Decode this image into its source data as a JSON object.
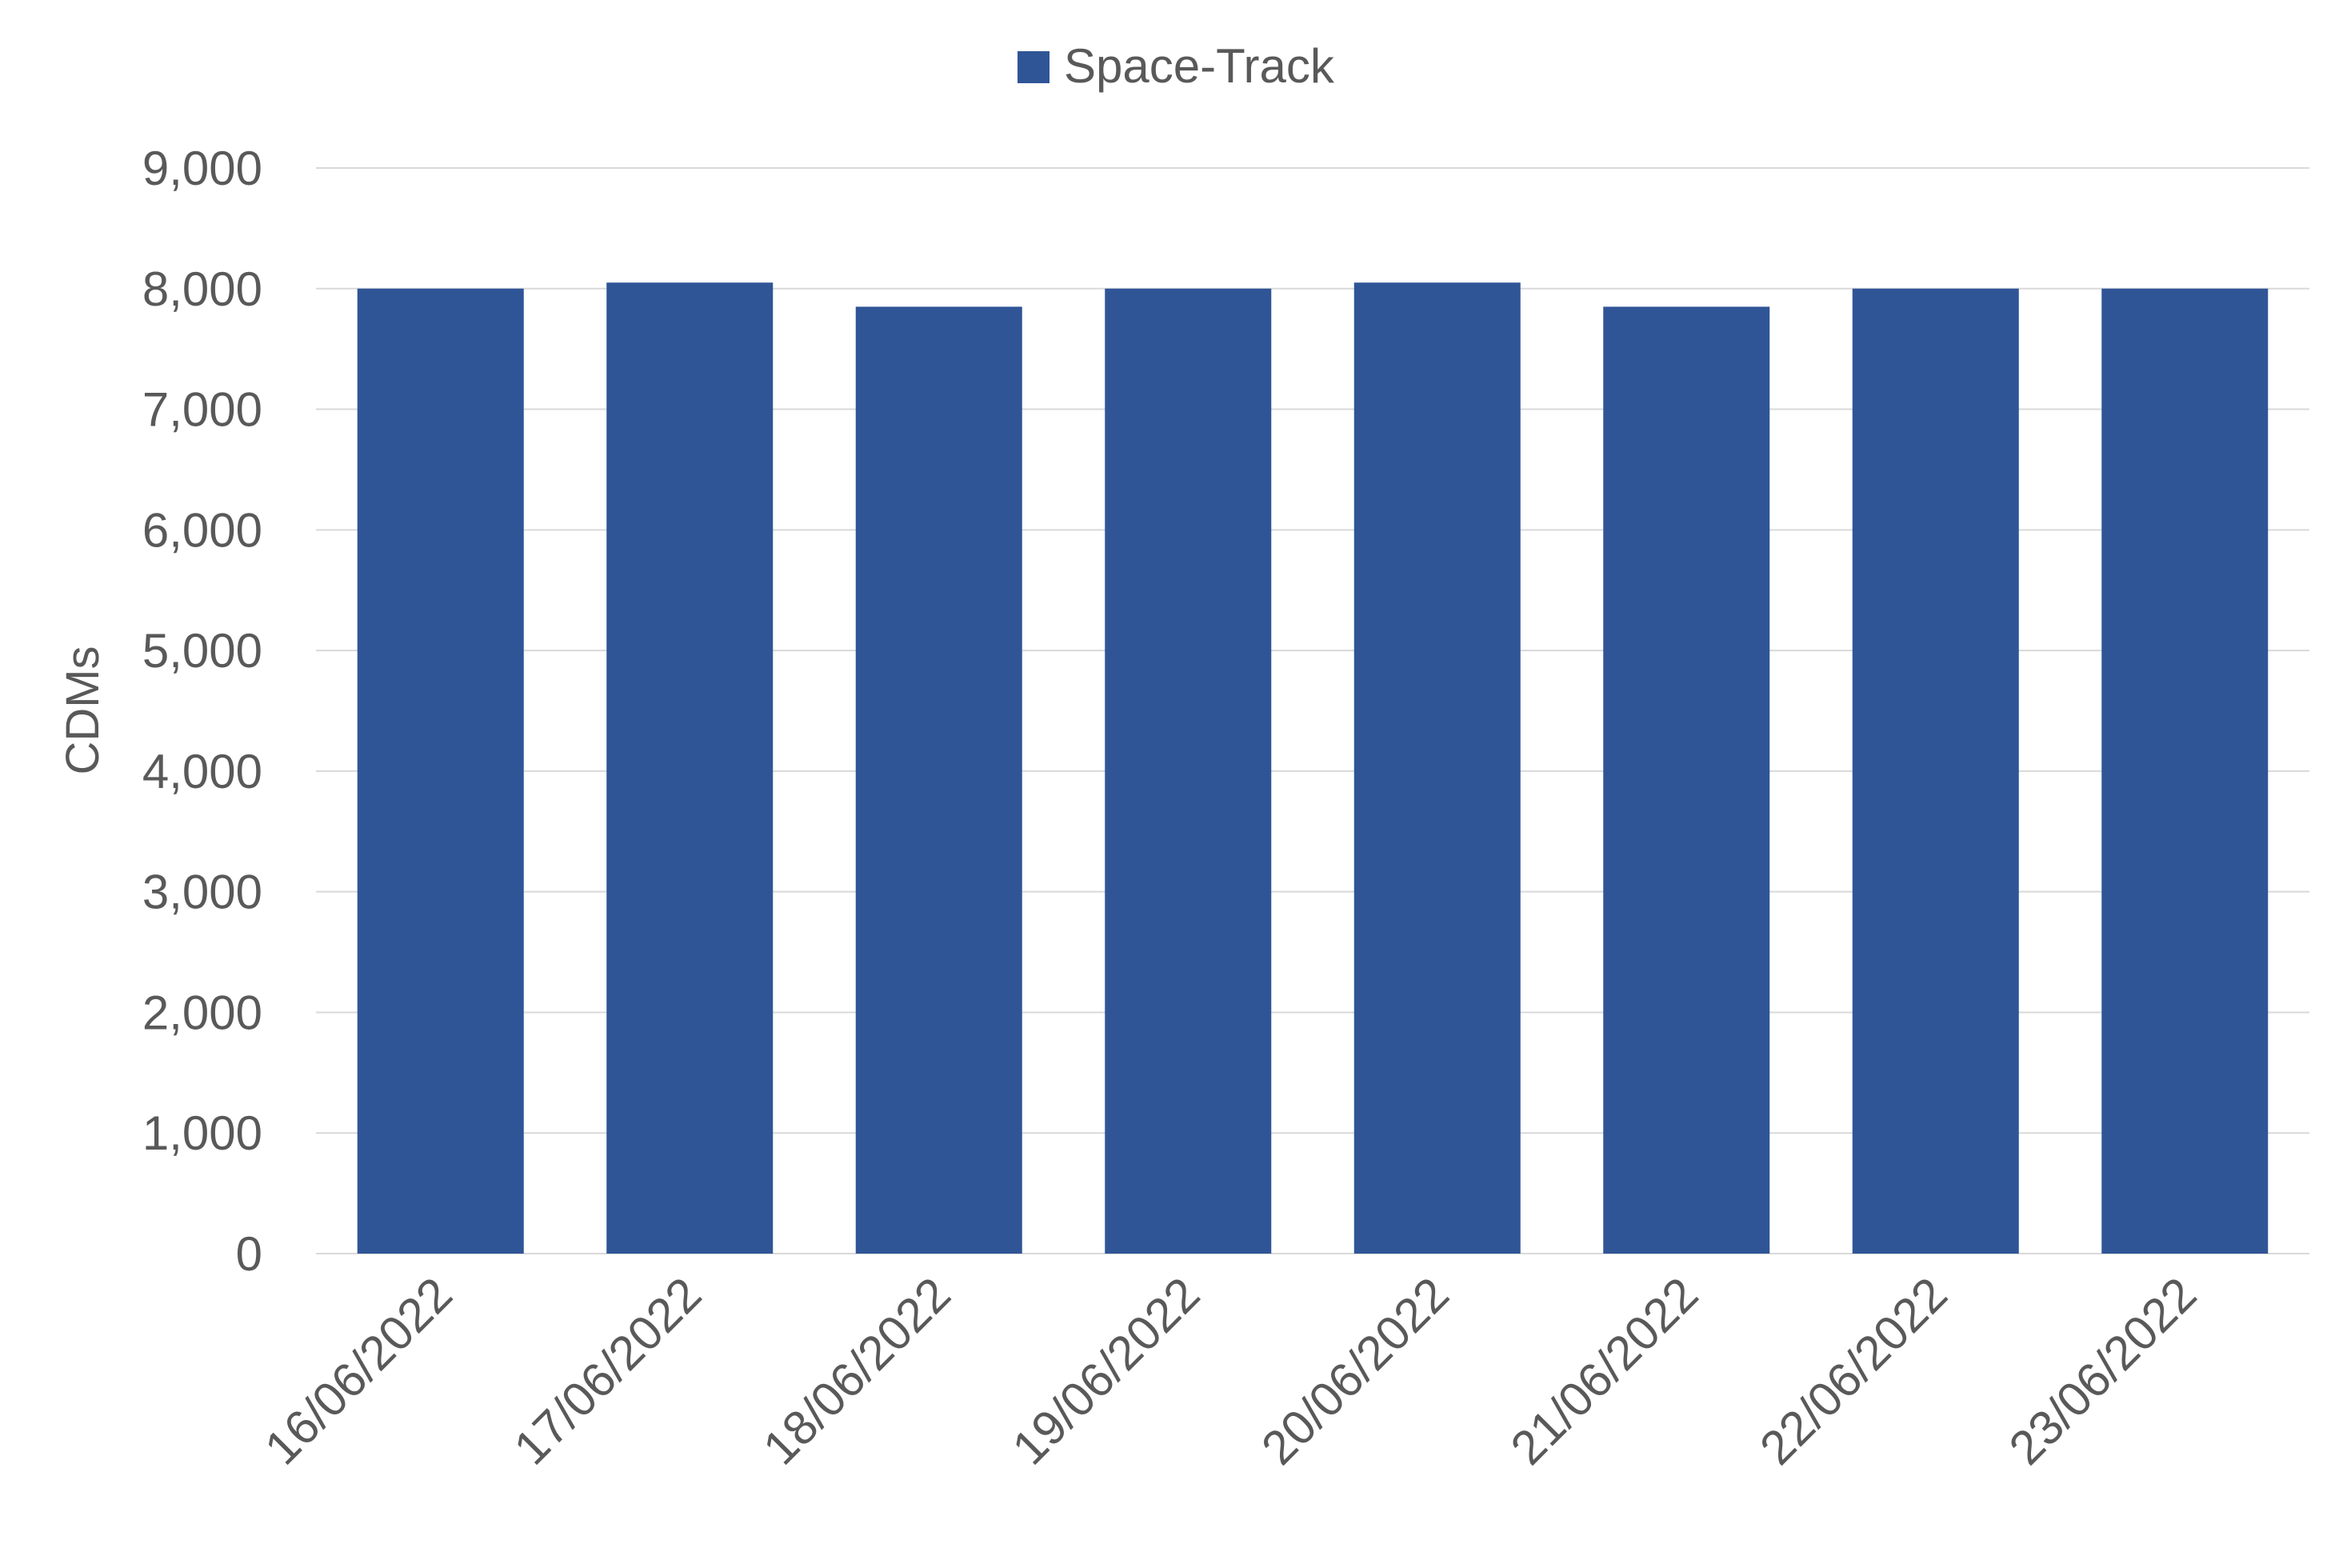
{
  "chart_data": {
    "type": "bar",
    "title": "",
    "xlabel": "",
    "ylabel": "CDMs",
    "categories": [
      "16/06/2022",
      "17/06/2022",
      "18/06/2022",
      "19/06/2022",
      "20/06/2022",
      "21/06/2022",
      "22/06/2022",
      "23/06/2022"
    ],
    "series": [
      {
        "name": "Space-Track",
        "color": "#2F5597",
        "values": [
          8000,
          8050,
          7850,
          8000,
          8050,
          7850,
          8000,
          8000
        ]
      }
    ],
    "ylim": [
      0,
      9000
    ],
    "yticks": [
      0,
      1000,
      2000,
      3000,
      4000,
      5000,
      6000,
      7000,
      8000,
      9000
    ],
    "ytick_labels": [
      "0",
      "1,000",
      "2,000",
      "3,000",
      "4,000",
      "5,000",
      "6,000",
      "7,000",
      "8,000",
      "9,000"
    ],
    "grid": true,
    "legend": "top-center",
    "colors": {
      "grid": "#D9D9D9",
      "text": "#595959"
    }
  }
}
